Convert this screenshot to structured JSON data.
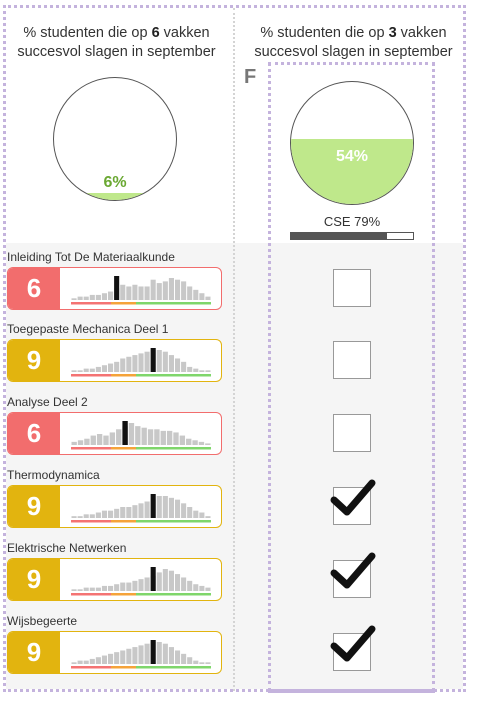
{
  "columns": {
    "left": {
      "prefix": "% studenten die op ",
      "num": "6",
      "suffix": " vakken",
      "line2": "succesvol slagen in september"
    },
    "right": {
      "prefix": "% studenten die op ",
      "num": "3",
      "suffix": " vakken",
      "line2": "succesvol slagen in september"
    }
  },
  "pie_left": {
    "label": "6%",
    "fraction": 0.06,
    "color": "#bfe88b",
    "text_color": "#6aa832"
  },
  "pie_right": {
    "label": "54%",
    "fraction": 0.54,
    "color": "#bfe88b",
    "text_color": "#ffffff"
  },
  "scenario_letter": "F",
  "cse": {
    "label": "CSE 79%",
    "fraction": 0.79
  },
  "colors": {
    "red": "#f26d6d",
    "yellow": "#e2b40f",
    "hist_bar": "#c8c8c8",
    "marker": "#111111",
    "fail": "#f47373",
    "mid": "#f5a33a",
    "pass": "#7fd66b"
  },
  "courses": [
    {
      "name": "Inleiding Tot De Materiaalkunde",
      "grade": "6",
      "status": "red",
      "checked": false,
      "hist": [
        1,
        2,
        2,
        3,
        3,
        4,
        5,
        7,
        9,
        8,
        9,
        8,
        8,
        12,
        10,
        11,
        13,
        12,
        11,
        8,
        6,
        4,
        2
      ],
      "marker": 7
    },
    {
      "name": "Toegepaste Mechanica Deel 1",
      "grade": "9",
      "status": "yellow",
      "checked": false,
      "hist": [
        1,
        1,
        2,
        2,
        3,
        4,
        5,
        6,
        8,
        9,
        10,
        11,
        12,
        13,
        13,
        12,
        10,
        8,
        6,
        3,
        2,
        1,
        1
      ],
      "marker": 13
    },
    {
      "name": "Analyse Deel 2",
      "grade": "6",
      "status": "red",
      "checked": false,
      "hist": [
        2,
        3,
        4,
        6,
        7,
        6,
        8,
        10,
        12,
        14,
        12,
        11,
        10,
        10,
        9,
        9,
        8,
        6,
        4,
        3,
        2,
        1
      ],
      "marker": 8
    },
    {
      "name": "Thermodynamica",
      "grade": "9",
      "status": "yellow",
      "checked": true,
      "hist": [
        1,
        1,
        2,
        2,
        3,
        4,
        4,
        5,
        6,
        6,
        7,
        8,
        9,
        10,
        12,
        12,
        11,
        10,
        8,
        6,
        4,
        3,
        1
      ],
      "marker": 13
    },
    {
      "name": "Elektrische Netwerken",
      "grade": "9",
      "status": "yellow",
      "checked": true,
      "hist": [
        1,
        1,
        2,
        2,
        2,
        3,
        3,
        4,
        5,
        5,
        6,
        7,
        8,
        9,
        11,
        13,
        12,
        10,
        8,
        6,
        4,
        3,
        2
      ],
      "marker": 13
    },
    {
      "name": "Wijsbegeerte",
      "grade": "9",
      "status": "yellow",
      "checked": true,
      "hist": [
        1,
        2,
        2,
        3,
        4,
        5,
        6,
        7,
        8,
        9,
        10,
        11,
        12,
        13,
        13,
        12,
        10,
        8,
        6,
        4,
        2,
        1,
        1
      ],
      "marker": 13
    }
  ]
}
